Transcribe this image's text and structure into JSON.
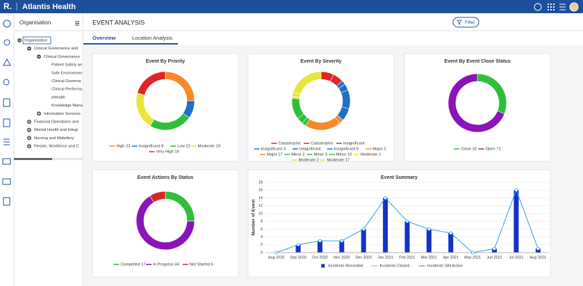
{
  "header": {
    "logo": "R.",
    "brand": "Atlantis Health"
  },
  "sidebar": {
    "title": "Organisation",
    "tree": [
      {
        "label": "Organisation",
        "expanded": true,
        "children": [
          {
            "label": "Clinical Governance and",
            "expanded": true,
            "children": [
              {
                "label": "Clinical Governance",
                "expanded": true,
                "children": [
                  {
                    "label": "Patient Safety an"
                  },
                  {
                    "label": "Safe Environmen"
                  },
                  {
                    "label": "Clinical Governa"
                  },
                  {
                    "label": "Clinical Performa"
                  },
                  {
                    "label": "eHealth"
                  },
                  {
                    "label": "Knowledge Mana"
                  }
                ]
              },
              {
                "label": "Information Services",
                "expanded": false
              }
            ]
          },
          {
            "label": "Financial Operations and",
            "expanded": false
          },
          {
            "label": "Mental Health and Integr",
            "expanded": false
          },
          {
            "label": "Nursing and Midwifery",
            "expanded": false
          },
          {
            "label": "People, Workforce and C",
            "expanded": false
          }
        ]
      }
    ]
  },
  "page": {
    "title": "EVENT ANALYSIS",
    "filter": "Filter",
    "tabs": [
      "Overview",
      "Location Analysis"
    ]
  },
  "chart_data": [
    {
      "type": "donut",
      "title": "Event By Priority",
      "categories": [
        "High 23",
        "Insignificant 9",
        "Low 22",
        "Moderate 19",
        "Very High 19"
      ],
      "values": [
        23,
        9,
        22,
        19,
        19
      ],
      "colors": [
        "#f5892a",
        "#1f6fc5",
        "#2fbf3a",
        "#e6e63c",
        "#e02424"
      ]
    },
    {
      "type": "donut",
      "title": "Event By Severity",
      "categories": [
        "Catastrophic",
        "Catastrophic",
        "Insignificant",
        "Insignificant 3",
        "Insignificant",
        "Insignificant 6",
        "Major 2",
        "Major 17",
        "Minor 2",
        "Minor 3",
        "Minor 10",
        "Moderate 1",
        "Moderate 2",
        "Moderate 17"
      ],
      "values": [
        6,
        5,
        2,
        3,
        9,
        6,
        2,
        17,
        2,
        3,
        10,
        1,
        2,
        17
      ],
      "colors": [
        "#e02424",
        "#e02424",
        "#1f6fc5",
        "#1f6fc5",
        "#1f6fc5",
        "#1f6fc5",
        "#f5892a",
        "#f5892a",
        "#2fbf3a",
        "#2fbf3a",
        "#2fbf3a",
        "#e6e63c",
        "#e6e63c",
        "#e6e63c"
      ]
    },
    {
      "type": "donut",
      "title": "Event By Event Close Status",
      "categories": [
        "Close 32",
        "Open 71"
      ],
      "values": [
        32,
        71
      ],
      "colors": [
        "#2fbf3a",
        "#8a14b8"
      ]
    },
    {
      "type": "donut",
      "title": "Event Actions By Status",
      "categories": [
        "Completed 17",
        "In Progress 44",
        "Not Started 6"
      ],
      "values": [
        17,
        44,
        6
      ],
      "colors": [
        "#2fbf3a",
        "#8a14b8",
        "#e02424"
      ]
    },
    {
      "type": "combo",
      "title": "Event Summary",
      "y_label": "Number of Event",
      "categories": [
        "Aug 2020",
        "Sep 2020",
        "Oct 2020",
        "Nov 2020",
        "Dec 2020",
        "Jan 2021",
        "Feb 2021",
        "Mar 2021",
        "Apr 2021",
        "May 2021",
        "Jun 2021",
        "Jul 2021",
        "Aug 2021"
      ],
      "series": [
        {
          "name": "Incidents Recorded",
          "kind": "bar",
          "color": "#1432c8",
          "values": [
            0,
            2,
            3,
            3,
            6,
            14,
            8,
            6,
            5,
            0,
            1,
            16,
            1
          ]
        },
        {
          "name": "Incidents Closed",
          "kind": "line",
          "color": "#b0b0b0",
          "values": [
            0,
            0,
            0,
            0,
            0,
            0,
            0,
            0,
            0,
            0,
            0,
            0,
            0
          ]
        },
        {
          "name": "Incidents Still Active",
          "kind": "line",
          "color": "#2aa0e6",
          "values": [
            0,
            2,
            3,
            3,
            6,
            14,
            8,
            6,
            5,
            0,
            1,
            16,
            1
          ]
        }
      ],
      "ylim": [
        0,
        18
      ],
      "yticks": [
        0,
        2,
        4,
        6,
        8,
        10,
        12,
        14,
        16,
        18
      ],
      "grid": true
    }
  ]
}
